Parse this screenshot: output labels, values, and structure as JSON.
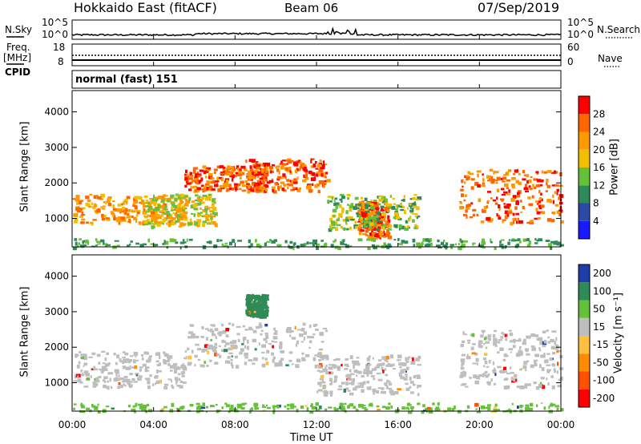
{
  "header": {
    "station": "Hokkaido East (fitACF)",
    "beam": "Beam 06",
    "date": "07/Sep/2019"
  },
  "left_labels": {
    "nsky": "N.Sky",
    "freq_line1": "Freq.",
    "freq_line2": "[MHz]",
    "cpid": "CPID"
  },
  "right_labels": {
    "nsearch": "N.Search",
    "nave": "Nave"
  },
  "ticks": {
    "noise_left": [
      "10^5",
      "10^0"
    ],
    "noise_right": [
      "10^5",
      "10^0"
    ],
    "freq_left": [
      "18",
      "8"
    ],
    "nave_right": [
      "60",
      "0"
    ]
  },
  "cpid_text": "normal (fast) 151",
  "colors": {
    "power": [
      "#1a1aff",
      "#2b4aa6",
      "#2e8b57",
      "#66c13a",
      "#f0c000",
      "#ff9900",
      "#ff6600",
      "#ff0000"
    ],
    "velocity": [
      "#ff0000",
      "#ff5000",
      "#ff8c00",
      "#ffc040",
      "#bebebe",
      "#66c13a",
      "#2e8b57",
      "#1e3caa"
    ]
  },
  "chart_data": [
    {
      "type": "heatmap",
      "panel": "power",
      "ylabel": "Slant Range [km]",
      "yticks": [
        1000,
        2000,
        3000,
        4000
      ],
      "ylim": [
        200,
        4600
      ],
      "xlim": [
        0,
        24
      ],
      "colorbar": {
        "label": "Power [dB]",
        "ticks": [
          "4",
          "8",
          "12",
          "16",
          "20",
          "24",
          "28"
        ]
      },
      "regions": [
        {
          "t0": 0.0,
          "t1": 5.5,
          "r0": 900,
          "r1": 1700,
          "level": 6
        },
        {
          "t0": 3.5,
          "t1": 7.0,
          "r0": 800,
          "r1": 1700,
          "level": 5
        },
        {
          "t0": 5.5,
          "t1": 9.5,
          "r0": 1800,
          "r1": 2500,
          "level": 7
        },
        {
          "t0": 8.5,
          "t1": 12.5,
          "r0": 1800,
          "r1": 2700,
          "level": 7
        },
        {
          "t0": 14.0,
          "t1": 15.5,
          "r0": 500,
          "r1": 1500,
          "level": 7
        },
        {
          "t0": 12.5,
          "t1": 17.0,
          "r0": 700,
          "r1": 1700,
          "level": 4
        },
        {
          "t0": 19.0,
          "t1": 24.0,
          "r0": 900,
          "r1": 2400,
          "level": 7
        },
        {
          "t0": 0.0,
          "t1": 24.0,
          "r0": 200,
          "r1": 450,
          "level": 3
        }
      ]
    },
    {
      "type": "heatmap",
      "panel": "velocity",
      "ylabel": "Slant Range [km]",
      "yticks": [
        1000,
        2000,
        3000,
        4000
      ],
      "ylim": [
        200,
        4600
      ],
      "xlim": [
        0,
        24
      ],
      "xticks": [
        "00:00",
        "04:00",
        "08:00",
        "12:00",
        "16:00",
        "20:00",
        "00:00"
      ],
      "xlabel": "Time UT",
      "colorbar": {
        "label": "Velocity [m s⁻¹]",
        "ticks": [
          "-200",
          "-100",
          "-50",
          "-15",
          "15",
          "50",
          "100",
          "200"
        ]
      },
      "regions": [
        {
          "t0": 0.0,
          "t1": 5.5,
          "r0": 900,
          "r1": 1900,
          "level": 4
        },
        {
          "t0": 5.5,
          "t1": 12.5,
          "r0": 1500,
          "r1": 2700,
          "level": 4
        },
        {
          "t0": 12.0,
          "t1": 17.0,
          "r0": 700,
          "r1": 1800,
          "level": 4
        },
        {
          "t0": 19.0,
          "t1": 24.0,
          "r0": 900,
          "r1": 2500,
          "level": 4
        },
        {
          "t0": 8.5,
          "t1": 9.5,
          "r0": 2900,
          "r1": 3500,
          "level": 6
        },
        {
          "t0": 0.0,
          "t1": 24.0,
          "r0": 200,
          "r1": 450,
          "level": 5
        }
      ]
    }
  ]
}
